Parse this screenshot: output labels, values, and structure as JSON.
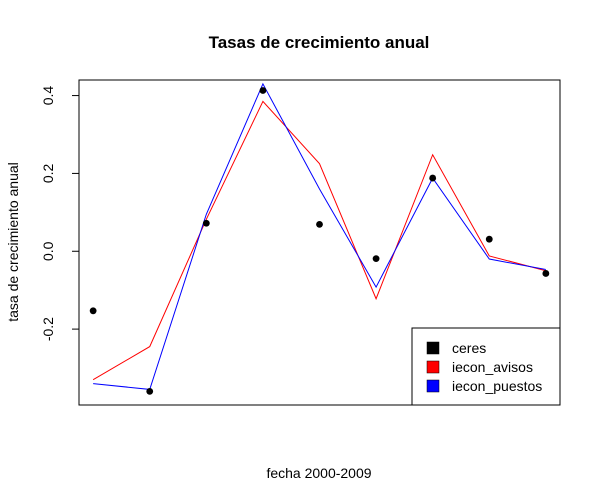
{
  "chart_data": {
    "type": "line",
    "title": "Tasas de crecimiento anual",
    "xlabel": "fecha 2000-2009",
    "ylabel": "tasa de crecimiento anual",
    "x": [
      1,
      2,
      3,
      4,
      5,
      6,
      7,
      8,
      9
    ],
    "xlim": [
      0.75,
      9.25
    ],
    "ylim": [
      -0.395,
      0.44
    ],
    "y_ticks": [
      -0.2,
      0.0,
      0.2,
      0.4
    ],
    "y_tick_labels": [
      "-0.2",
      "0.0",
      "0.2",
      "0.4"
    ],
    "grid": false,
    "legend_position": "bottom-right",
    "series": [
      {
        "name": "ceres",
        "style": "points",
        "color": "#000000",
        "values": [
          -0.153,
          -0.36,
          0.072,
          0.413,
          0.069,
          -0.019,
          0.188,
          0.031,
          -0.057
        ]
      },
      {
        "name": "iecon_avisos",
        "style": "line",
        "color": "#ff0000",
        "values": [
          -0.33,
          -0.245,
          0.082,
          0.385,
          0.225,
          -0.122,
          0.248,
          -0.012,
          -0.05
        ]
      },
      {
        "name": "iecon_puestos",
        "style": "line",
        "color": "#0000ff",
        "values": [
          -0.34,
          -0.355,
          0.095,
          0.43,
          0.16,
          -0.092,
          0.188,
          -0.02,
          -0.047
        ]
      }
    ]
  }
}
